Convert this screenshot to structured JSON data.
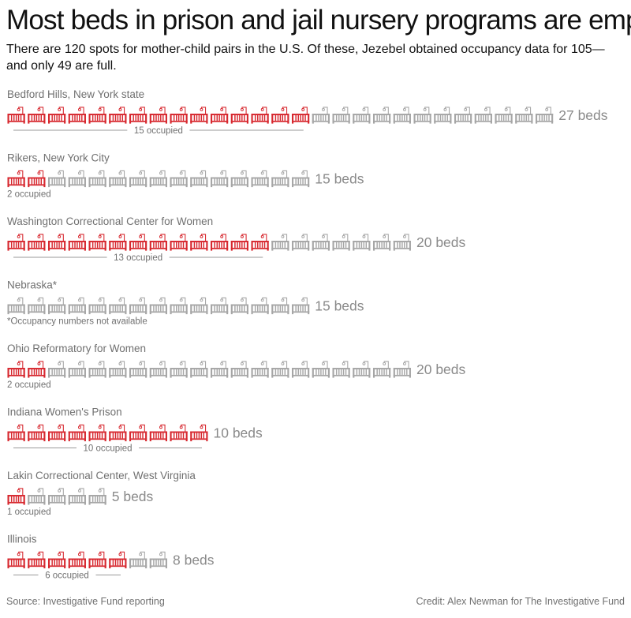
{
  "title": "Most beds in prison and jail nursery programs are empty",
  "subtitle": "There are 120 spots for mother-child pairs in the U.S. Of these, Jezebel obtained occupancy data for 105—and only 49 are full.",
  "source": "Source: Investigative Fund reporting",
  "credit": "Credit:  Alex Newman for The Investigative Fund",
  "colors": {
    "occupied": "#d7282f",
    "empty": "#a6a6a6",
    "label": "#707070",
    "total_label": "#8a8a8a",
    "rule": "#9a9a9a"
  },
  "icon": "crib-icon",
  "chart_data": {
    "type": "pictogram",
    "units": "beds",
    "series": [
      {
        "name": "Bedford Hills, New York state",
        "beds": 27,
        "occupied": 15,
        "total_label": "27 beds",
        "occupied_label": "15 occupied"
      },
      {
        "name": "Rikers, New York City",
        "beds": 15,
        "occupied": 2,
        "total_label": "15 beds",
        "occupied_label": "2 occupied"
      },
      {
        "name": "Washington Correctional Center for Women",
        "beds": 20,
        "occupied": 13,
        "total_label": "20 beds",
        "occupied_label": "13 occupied"
      },
      {
        "name": "Nebraska*",
        "beds": 15,
        "occupied": 0,
        "total_label": "15 beds",
        "occupied_label": "*Occupancy numbers not available"
      },
      {
        "name": "Ohio Reformatory for Women",
        "beds": 20,
        "occupied": 2,
        "total_label": "20 beds",
        "occupied_label": "2 occupied"
      },
      {
        "name": "Indiana Women's Prison",
        "beds": 10,
        "occupied": 10,
        "total_label": "10 beds",
        "occupied_label": "10 occupied"
      },
      {
        "name": "Lakin Correctional Center, West Virginia",
        "beds": 5,
        "occupied": 1,
        "total_label": "5 beds",
        "occupied_label": "1 occupied"
      },
      {
        "name": "Illinois",
        "beds": 8,
        "occupied": 6,
        "total_label": "8 beds",
        "occupied_label": "6 occupied"
      }
    ]
  }
}
